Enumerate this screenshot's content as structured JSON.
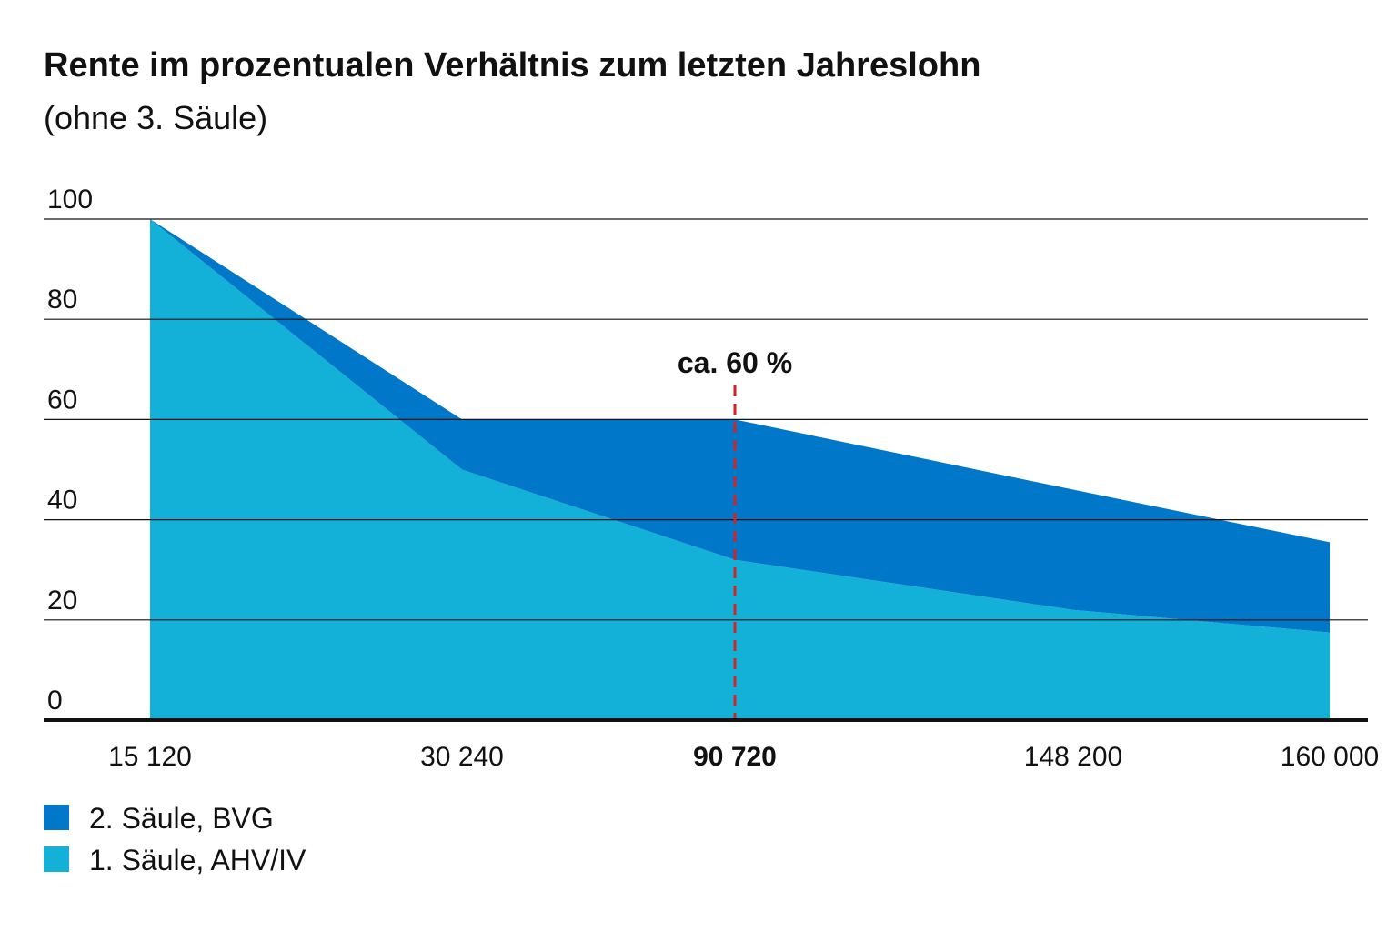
{
  "chart_data": {
    "type": "stacked_area",
    "title": "Rente im prozentualen Verhältnis zum letzten Jahreslohn",
    "subtitle": "(ohne 3. Säule)",
    "categories": [
      "15 120",
      "30 240",
      "90 720",
      "148 200",
      "160 000"
    ],
    "series": [
      {
        "name": "1. Säule, AHV/IV",
        "color": "#13b0d8",
        "values": [
          100,
          50,
          32,
          22,
          17.5
        ]
      },
      {
        "name": "2. Säule, BVG",
        "color": "#0077c8",
        "values": [
          0,
          10,
          28,
          24,
          18
        ]
      }
    ],
    "annotation": "ca. 60 %",
    "annotation_color": "#d2232a",
    "ylim": [
      0,
      100
    ],
    "yticks": [
      0,
      20,
      40,
      60,
      80,
      100
    ],
    "grid": true
  }
}
